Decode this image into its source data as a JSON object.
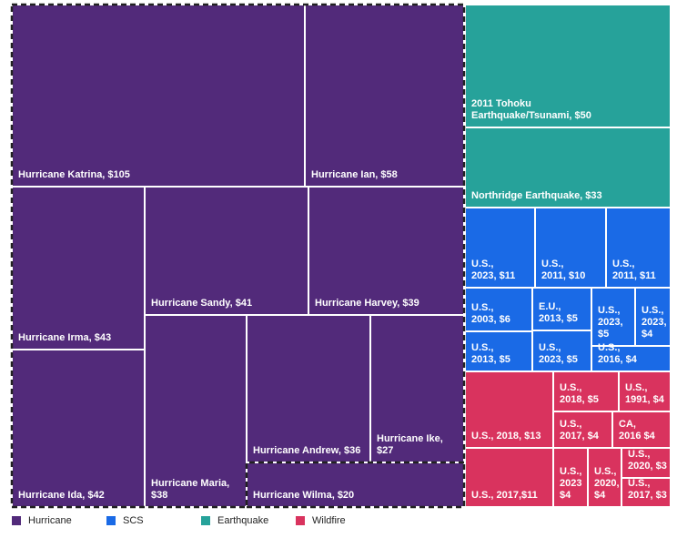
{
  "chart_data": {
    "type": "treemap",
    "unit": "$",
    "colors": {
      "Hurricane": "#522a7a",
      "SCS": "#1a6ae6",
      "Earthquake": "#26a29a",
      "Wildfire": "#d9335e"
    },
    "legend": [
      "Hurricane",
      "SCS",
      "Earthquake",
      "Wildfire"
    ],
    "legend_placement": "bottom-left",
    "items": [
      {
        "group": "Hurricane",
        "label": "Hurricane Katrina, $105",
        "value": 105
      },
      {
        "group": "Hurricane",
        "label": "Hurricane Ian, $58",
        "value": 58
      },
      {
        "group": "Hurricane",
        "label": "Hurricane Irma, $43",
        "value": 43
      },
      {
        "group": "Hurricane",
        "label": "Hurricane Sandy, $41",
        "value": 41
      },
      {
        "group": "Hurricane",
        "label": "Hurricane Harvey, $39",
        "value": 39
      },
      {
        "group": "Hurricane",
        "label": "Hurricane Ida, $42",
        "value": 42
      },
      {
        "group": "Hurricane",
        "label": "Hurricane Maria, $38",
        "value": 38
      },
      {
        "group": "Hurricane",
        "label": "Hurricane Andrew, $36",
        "value": 36
      },
      {
        "group": "Hurricane",
        "label": "Hurricane Ike, $27",
        "value": 27
      },
      {
        "group": "Hurricane",
        "label": "Hurricane Wilma, $20",
        "value": 20
      },
      {
        "group": "Earthquake",
        "label": "2011 Tohoku\nEarthquake/Tsunami, $50",
        "value": 50
      },
      {
        "group": "Earthquake",
        "label": "Northridge Earthquake, $33",
        "value": 33
      },
      {
        "group": "SCS",
        "label": "U.S.,\n2023, $11",
        "value": 11
      },
      {
        "group": "SCS",
        "label": "U.S.,\n2011, $10",
        "value": 10
      },
      {
        "group": "SCS",
        "label": "U.S.,\n2011, $11",
        "value": 11
      },
      {
        "group": "SCS",
        "label": "U.S.,\n2003, $6",
        "value": 6
      },
      {
        "group": "SCS",
        "label": "E.U.,\n2013, $5",
        "value": 5
      },
      {
        "group": "SCS",
        "label": "U.S.,\n2023,\n$5",
        "value": 5
      },
      {
        "group": "SCS",
        "label": "U.S.,\n2023,\n$4",
        "value": 4
      },
      {
        "group": "SCS",
        "label": "U.S.,\n2013, $5",
        "value": 5
      },
      {
        "group": "SCS",
        "label": "U.S.,\n2023, $5",
        "value": 5
      },
      {
        "group": "SCS",
        "label": "U.S.,\n2016, $4",
        "value": 4
      },
      {
        "group": "Wildfire",
        "label": "U.S., 2018, $13",
        "value": 13
      },
      {
        "group": "Wildfire",
        "label": "U.S.,\n2018, $5",
        "value": 5
      },
      {
        "group": "Wildfire",
        "label": "U.S.,\n1991, $4",
        "value": 4
      },
      {
        "group": "Wildfire",
        "label": "U.S.,\n2017, $4",
        "value": 4
      },
      {
        "group": "Wildfire",
        "label": "CA,\n2016 $4",
        "value": 4
      },
      {
        "group": "Wildfire",
        "label": "U.S., 2017,$11",
        "value": 11
      },
      {
        "group": "Wildfire",
        "label": "U.S.,\n2023\n$4",
        "value": 4
      },
      {
        "group": "Wildfire",
        "label": "U.S.,\n2020,\n$4",
        "value": 4
      },
      {
        "group": "Wildfire",
        "label": "U.S.,\n2020, $3",
        "value": 3
      },
      {
        "group": "Wildfire",
        "label": "U.S.,\n2017, $3",
        "value": 3
      }
    ]
  }
}
